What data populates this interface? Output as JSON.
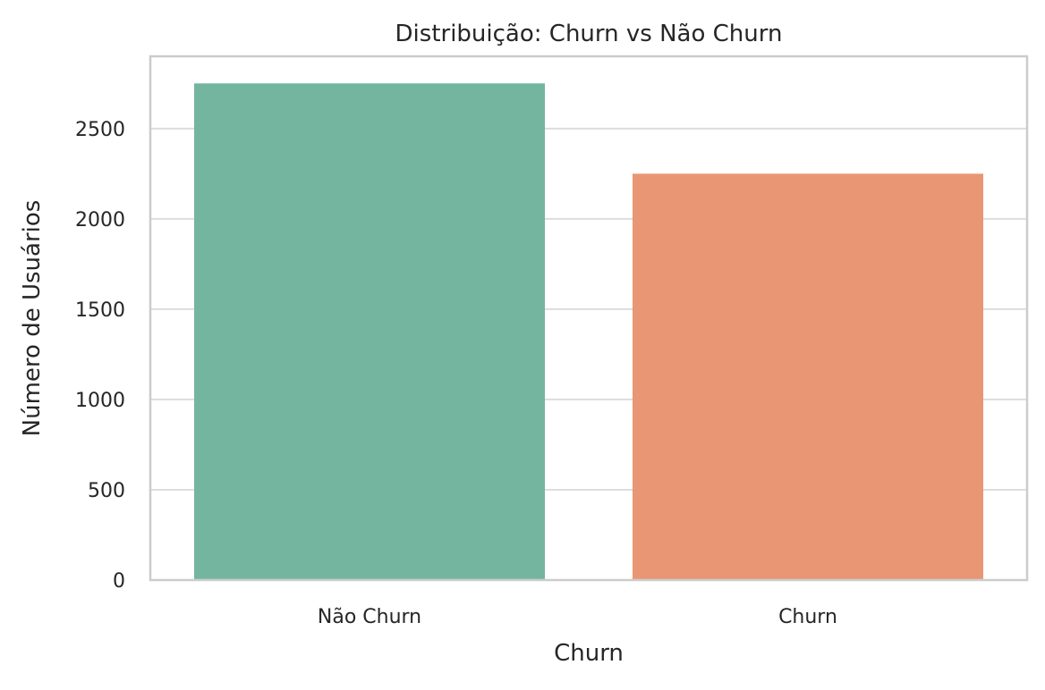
{
  "chart_data": {
    "type": "bar",
    "title": "Distribuição: Churn vs Não Churn",
    "xlabel": "Churn",
    "ylabel": "Número de Usuários",
    "categories": [
      "Não Churn",
      "Churn"
    ],
    "values": [
      2750,
      2250
    ],
    "colors": [
      "#74b5a0",
      "#e99674"
    ],
    "ylim": [
      0,
      2900
    ],
    "yticks": [
      0,
      500,
      1000,
      1500,
      2000,
      2500
    ],
    "grid": "horizontal",
    "grid_color": "#dddddd",
    "axes_edge_color": "#cccccc",
    "legend": "none"
  }
}
